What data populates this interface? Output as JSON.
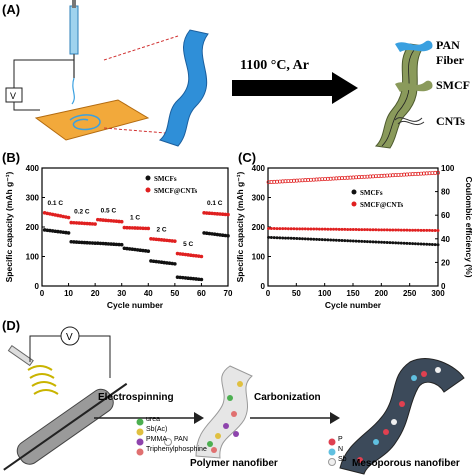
{
  "panel_labels": {
    "a": "(A)",
    "b": "(B)",
    "c": "(C)",
    "d": "(D)"
  },
  "panel_a": {
    "condition": "1100 °C, Ar",
    "voltage_label": "V",
    "legend": [
      {
        "label": "PAN Fiber",
        "color": "#3aa0e0"
      },
      {
        "label": "SMCF",
        "color": "#8a9a5b"
      },
      {
        "label": "CNTs",
        "color": "#333333"
      }
    ]
  },
  "chart_data": [
    {
      "type": "scatter",
      "panel": "B",
      "xlabel": "Cycle number",
      "ylabel": "Specific capacity (mAh g⁻¹)",
      "xlim": [
        0,
        70
      ],
      "ylim": [
        0,
        400
      ],
      "xticks": [
        0,
        10,
        20,
        30,
        40,
        50,
        60,
        70
      ],
      "yticks": [
        0,
        100,
        200,
        300,
        400
      ],
      "legend": {
        "placement": "top-right"
      },
      "series": [
        {
          "name": "SMCFs",
          "color": "#111111",
          "segments": [
            {
              "x": [
                1,
                10
              ],
              "values": [
                190,
                180
              ]
            },
            {
              "x": [
                11,
                20
              ],
              "values": [
                150,
                145
              ]
            },
            {
              "x": [
                21,
                30
              ],
              "values": [
                145,
                140
              ]
            },
            {
              "x": [
                31,
                40
              ],
              "values": [
                128,
                118
              ]
            },
            {
              "x": [
                41,
                50
              ],
              "values": [
                85,
                75
              ]
            },
            {
              "x": [
                51,
                60
              ],
              "values": [
                30,
                22
              ]
            },
            {
              "x": [
                61,
                70
              ],
              "values": [
                180,
                170
              ]
            }
          ]
        },
        {
          "name": "SMCF@CNTs",
          "color": "#e02020",
          "segments": [
            {
              "x": [
                1,
                10
              ],
              "values": [
                248,
                232
              ]
            },
            {
              "x": [
                11,
                20
              ],
              "values": [
                215,
                210
              ]
            },
            {
              "x": [
                21,
                30
              ],
              "values": [
                225,
                218
              ]
            },
            {
              "x": [
                31,
                40
              ],
              "values": [
                198,
                195
              ]
            },
            {
              "x": [
                41,
                50
              ],
              "values": [
                160,
                152
              ]
            },
            {
              "x": [
                51,
                60
              ],
              "values": [
                110,
                100
              ]
            },
            {
              "x": [
                61,
                70
              ],
              "values": [
                248,
                242
              ]
            }
          ]
        }
      ],
      "annotations": [
        {
          "text": "0.1 C",
          "x": 5,
          "y": 275
        },
        {
          "text": "0.2 C",
          "x": 15,
          "y": 245
        },
        {
          "text": "0.5 C",
          "x": 25,
          "y": 250
        },
        {
          "text": "1 C",
          "x": 35,
          "y": 225
        },
        {
          "text": "2 C",
          "x": 45,
          "y": 185
        },
        {
          "text": "5 C",
          "x": 55,
          "y": 135
        },
        {
          "text": "0.1 C",
          "x": 65,
          "y": 275
        }
      ]
    },
    {
      "type": "scatter",
      "panel": "C",
      "xlabel": "Cycle number",
      "ylabel": "Specific capacity (mAh g⁻¹)",
      "y2label": "Coulombic efficiency (%)",
      "xlim": [
        0,
        300
      ],
      "ylim": [
        0,
        400
      ],
      "y2lim": [
        0,
        100
      ],
      "xticks": [
        0,
        50,
        100,
        150,
        200,
        250,
        300
      ],
      "yticks": [
        0,
        100,
        200,
        300,
        400
      ],
      "y2ticks": [
        0,
        20,
        40,
        60,
        80,
        100
      ],
      "legend": {
        "placement": "center-right"
      },
      "series": [
        {
          "name": "SMCFs",
          "color": "#111111",
          "x_range": [
            1,
            300
          ],
          "values_start": 165,
          "values_end": 140
        },
        {
          "name": "SMCF@CNTs",
          "color": "#e02020",
          "x_range": [
            1,
            300
          ],
          "values_start": 195,
          "values_end": 188
        },
        {
          "name": "Coulombic efficiency",
          "color": "#e02020",
          "hollow": true,
          "axis": "y2",
          "x_range": [
            1,
            300
          ],
          "values_start": 88,
          "values_end": 96
        }
      ]
    }
  ],
  "panel_d": {
    "step1": "Electrospinning",
    "step2": "Carbonization",
    "voltage_label": "V",
    "legend1": [
      {
        "label": "urea",
        "color": "#4caf50"
      },
      {
        "label": "Sb(Ac)",
        "color": "#e0c040"
      },
      {
        "label": "PMMA",
        "color": "#8e44ad"
      },
      {
        "label": "PAN",
        "color": "#e8e8e8"
      },
      {
        "label": "Triphenylphosphine",
        "color": "#e07070"
      }
    ],
    "legend2": [
      {
        "label": "P",
        "color": "#e04050"
      },
      {
        "label": "N",
        "color": "#60c0e0"
      },
      {
        "label": "Sb",
        "color": "#f0f0f0"
      }
    ],
    "caption1": "Polymer nanofiber",
    "caption2": "Mesoporous nanofiber"
  }
}
